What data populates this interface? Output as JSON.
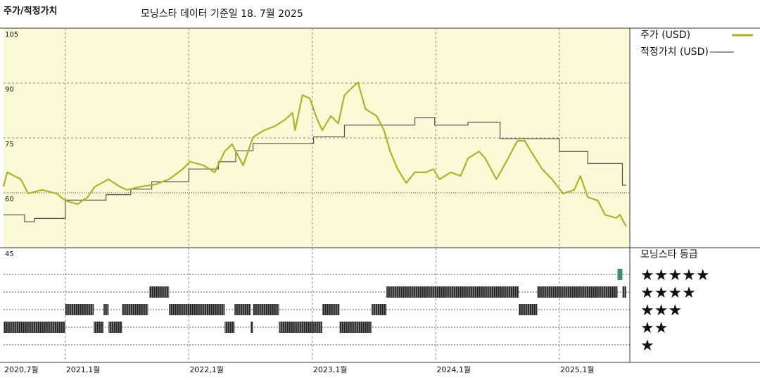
{
  "chart_data": {
    "type": "line",
    "title": "주가/적정가치",
    "subtitle": "모닝스타 데이터 기준일 18. 7월 2025",
    "xlim": [
      2020.5,
      2025.57
    ],
    "xticks": [
      {
        "value": 2020.5,
        "label": "2020,7월"
      },
      {
        "value": 2021.0,
        "label": "2021,1월"
      },
      {
        "value": 2022.0,
        "label": "2022,1월"
      },
      {
        "value": 2023.0,
        "label": "2023,1월"
      },
      {
        "value": 2024.0,
        "label": "2024,1월"
      },
      {
        "value": 2025.0,
        "label": "2025,1월"
      }
    ],
    "ylim": [
      45,
      105
    ],
    "yticks": [
      105,
      90,
      75,
      60,
      45
    ],
    "grid": true,
    "series": [
      {
        "name": "주가 (USD)",
        "color": "#a9b526",
        "x": [
          2020.5,
          2020.53,
          2020.64,
          2020.7,
          2020.81,
          2020.93,
          2021.0,
          2021.1,
          2021.18,
          2021.24,
          2021.35,
          2021.44,
          2021.5,
          2021.61,
          2021.73,
          2021.84,
          2021.95,
          2022.01,
          2022.12,
          2022.21,
          2022.29,
          2022.35,
          2022.44,
          2022.52,
          2022.61,
          2022.69,
          2022.78,
          2022.84,
          2022.86,
          2022.92,
          2022.98,
          2023.04,
          2023.08,
          2023.15,
          2023.21,
          2023.26,
          2023.32,
          2023.37,
          2023.43,
          2023.52,
          2023.58,
          2023.63,
          2023.69,
          2023.76,
          2023.83,
          2023.92,
          2023.98,
          2024.03,
          2024.12,
          2024.2,
          2024.26,
          2024.35,
          2024.4,
          2024.49,
          2024.57,
          2024.66,
          2024.72,
          2024.77,
          2024.86,
          2024.94,
          2025.03,
          2025.12,
          2025.17,
          2025.23,
          2025.31,
          2025.37,
          2025.46,
          2025.49,
          2025.54
        ],
        "values": [
          61.7,
          65.6,
          63.7,
          59.8,
          60.8,
          59.8,
          57.9,
          56.9,
          58.8,
          61.7,
          63.7,
          61.7,
          60.8,
          61.7,
          62.3,
          63.7,
          66.5,
          68.5,
          67.5,
          65.6,
          71.3,
          73.3,
          67.5,
          75.2,
          77.1,
          78.1,
          80,
          81.9,
          77.1,
          86.7,
          85.8,
          80,
          77.1,
          81,
          79,
          86.7,
          88.7,
          90.2,
          82.9,
          81,
          77.1,
          71.3,
          66.5,
          62.7,
          65.6,
          65.6,
          66.5,
          63.7,
          65.6,
          64.6,
          69.4,
          71.3,
          69.4,
          63.7,
          68.5,
          74.2,
          74.2,
          71.3,
          66.5,
          63.7,
          59.8,
          60.8,
          64.6,
          58.8,
          57.9,
          54,
          53.1,
          54,
          50.8
        ]
      },
      {
        "name": "적정가치 (USD)",
        "color": "#555555",
        "step": true,
        "x": [
          2020.5,
          2020.67,
          2020.75,
          2021.0,
          2021.33,
          2021.53,
          2021.7,
          2022.0,
          2022.24,
          2022.38,
          2022.52,
          2023.01,
          2023.26,
          2023.83,
          2023.99,
          2024.26,
          2024.52,
          2025.0,
          2025.23,
          2025.51,
          2025.54
        ],
        "values": [
          54,
          52.1,
          53,
          58,
          59.5,
          61,
          63,
          66.5,
          68.5,
          71.5,
          73.5,
          75.3,
          78.5,
          80.5,
          78.5,
          79.3,
          74.8,
          71.3,
          68,
          62.1,
          62.1
        ]
      }
    ],
    "rating_title": "모닝스타 등급",
    "rating_labels": [
      "★★★★★",
      "★★★★",
      "★★★",
      "★★",
      "★"
    ],
    "ratings": {
      "start": [
        2020.5,
        2021.0,
        2021.23,
        2021.31,
        2021.35,
        2021.46,
        2021.68,
        2021.84,
        2022.29,
        2022.37,
        2022.5,
        2022.52,
        2022.73,
        2023.08,
        2023.22,
        2023.48,
        2023.6,
        2024.67,
        2024.82,
        2025.47,
        2025.51
      ],
      "end": [
        2021.0,
        2021.23,
        2021.31,
        2021.35,
        2021.46,
        2021.67,
        2021.84,
        2022.29,
        2022.37,
        2022.5,
        2022.52,
        2022.73,
        2023.08,
        2023.22,
        2023.48,
        2023.6,
        2024.67,
        2024.82,
        2025.47,
        2025.51,
        2025.54
      ],
      "stars": [
        2,
        3,
        2,
        3,
        2,
        3,
        4,
        3,
        2,
        3,
        2,
        3,
        2,
        3,
        2,
        3,
        4,
        3,
        4,
        5,
        4
      ]
    }
  }
}
